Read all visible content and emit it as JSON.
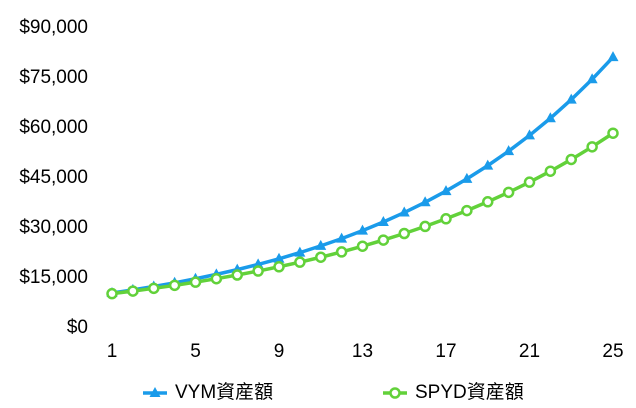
{
  "chart_data": {
    "type": "line",
    "x": [
      1,
      2,
      3,
      4,
      5,
      6,
      7,
      8,
      9,
      10,
      11,
      12,
      13,
      14,
      15,
      16,
      17,
      18,
      19,
      20,
      21,
      22,
      23,
      24,
      25
    ],
    "xlim": [
      1,
      25
    ],
    "xticks": [
      1,
      5,
      9,
      13,
      17,
      21,
      25
    ],
    "ylim": [
      0,
      90000
    ],
    "yticks": [
      {
        "value": 0,
        "label": "$0"
      },
      {
        "value": 15000,
        "label": "$15,000"
      },
      {
        "value": 30000,
        "label": "$30,000"
      },
      {
        "value": 45000,
        "label": "$45,000"
      },
      {
        "value": 60000,
        "label": "$60,000"
      },
      {
        "value": 75000,
        "label": "$75,000"
      },
      {
        "value": 90000,
        "label": "$90,000"
      }
    ],
    "grid": false,
    "legend": "bottom",
    "series": [
      {
        "name": "VYM資産額",
        "color": "#1a9bea",
        "marker": "triangle",
        "values": [
          10500,
          11435,
          12452,
          13560,
          14767,
          16081,
          17512,
          19071,
          20768,
          22617,
          24630,
          26822,
          29209,
          31808,
          34639,
          37722,
          41079,
          44735,
          48717,
          53053,
          57774,
          62916,
          68516,
          74614,
          81254
        ]
      },
      {
        "name": "SPYD資産額",
        "color": "#62d13a",
        "marker": "circle",
        "values": [
          10300,
          11073,
          11903,
          12796,
          13755,
          14787,
          15896,
          17088,
          18370,
          19748,
          21229,
          22821,
          24532,
          26372,
          28350,
          30477,
          32762,
          35220,
          37861,
          40701,
          43753,
          47035,
          50562,
          54354,
          58431
        ]
      }
    ]
  }
}
